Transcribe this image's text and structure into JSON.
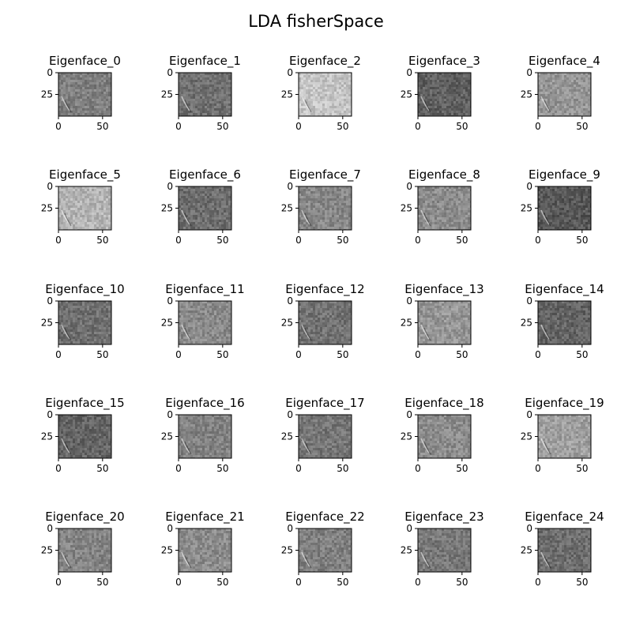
{
  "chart_data": {
    "type": "image-grid",
    "title": "LDA fisherSpace",
    "grid": {
      "rows": 5,
      "cols": 5
    },
    "x_ticks": [
      0,
      50
    ],
    "y_ticks": [
      0,
      25
    ],
    "xlim": [
      0,
      60
    ],
    "ylim": [
      50,
      0
    ],
    "panels": [
      {
        "title": "Eigenface_0",
        "mean_gray": 128
      },
      {
        "title": "Eigenface_1",
        "mean_gray": 112
      },
      {
        "title": "Eigenface_2",
        "mean_gray": 196
      },
      {
        "title": "Eigenface_3",
        "mean_gray": 96
      },
      {
        "title": "Eigenface_4",
        "mean_gray": 150
      },
      {
        "title": "Eigenface_5",
        "mean_gray": 180
      },
      {
        "title": "Eigenface_6",
        "mean_gray": 110
      },
      {
        "title": "Eigenface_7",
        "mean_gray": 135
      },
      {
        "title": "Eigenface_8",
        "mean_gray": 140
      },
      {
        "title": "Eigenface_9",
        "mean_gray": 88
      },
      {
        "title": "Eigenface_10",
        "mean_gray": 112
      },
      {
        "title": "Eigenface_11",
        "mean_gray": 138
      },
      {
        "title": "Eigenface_12",
        "mean_gray": 115
      },
      {
        "title": "Eigenface_13",
        "mean_gray": 150
      },
      {
        "title": "Eigenface_14",
        "mean_gray": 100
      },
      {
        "title": "Eigenface_15",
        "mean_gray": 100
      },
      {
        "title": "Eigenface_16",
        "mean_gray": 130
      },
      {
        "title": "Eigenface_17",
        "mean_gray": 118
      },
      {
        "title": "Eigenface_18",
        "mean_gray": 140
      },
      {
        "title": "Eigenface_19",
        "mean_gray": 160
      },
      {
        "title": "Eigenface_20",
        "mean_gray": 132
      },
      {
        "title": "Eigenface_21",
        "mean_gray": 140
      },
      {
        "title": "Eigenface_22",
        "mean_gray": 128
      },
      {
        "title": "Eigenface_23",
        "mean_gray": 120
      },
      {
        "title": "Eigenface_24",
        "mean_gray": 110
      }
    ]
  }
}
